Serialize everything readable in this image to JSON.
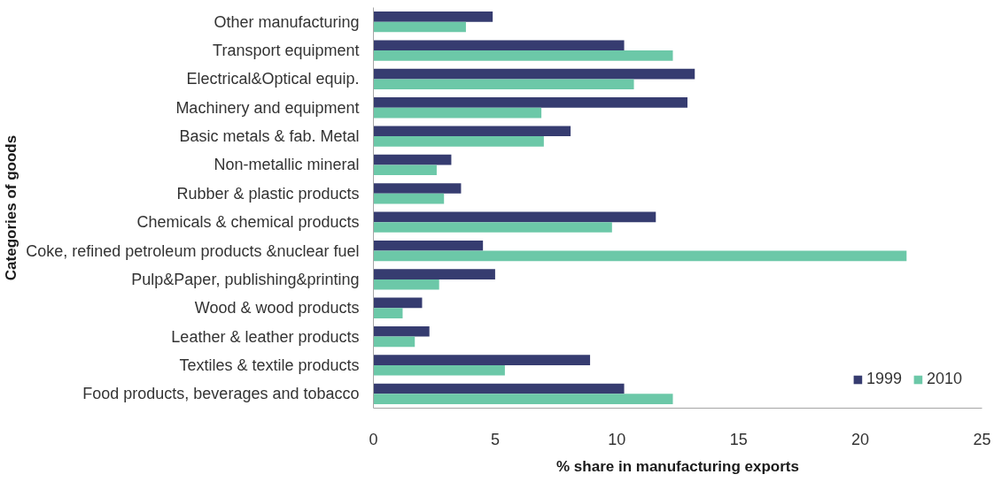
{
  "chart_data": {
    "type": "bar",
    "orientation": "horizontal",
    "categories": [
      "Other manufacturing",
      "Transport equipment",
      "Electrical&Optical equip.",
      "Machinery and equipment",
      "Basic metals & fab. Metal",
      "Non-metallic mineral",
      "Rubber & plastic products",
      "Chemicals & chemical products",
      "Coke, refined petroleum products &nuclear fuel",
      "Pulp&Paper, publishing&printing",
      "Wood & wood products",
      "Leather & leather products",
      "Textiles & textile products",
      "Food products, beverages and tobacco"
    ],
    "series": [
      {
        "name": "1999",
        "color": "#363c70",
        "values": [
          4.9,
          10.3,
          13.2,
          12.9,
          8.1,
          3.2,
          3.6,
          11.6,
          4.5,
          5.0,
          2.0,
          2.3,
          8.9,
          10.3
        ]
      },
      {
        "name": "2010",
        "color": "#6cc8a8",
        "values": [
          3.8,
          12.3,
          10.7,
          6.9,
          7.0,
          2.6,
          2.9,
          9.8,
          21.9,
          2.7,
          1.2,
          1.7,
          5.4,
          12.3
        ]
      }
    ],
    "xlim": [
      0,
      25
    ],
    "xticks": [
      0,
      5,
      10,
      15,
      20,
      25
    ],
    "xlabel": "% share in manufacturing exports",
    "ylabel": "Categories of goods",
    "legend": "bottom right"
  }
}
